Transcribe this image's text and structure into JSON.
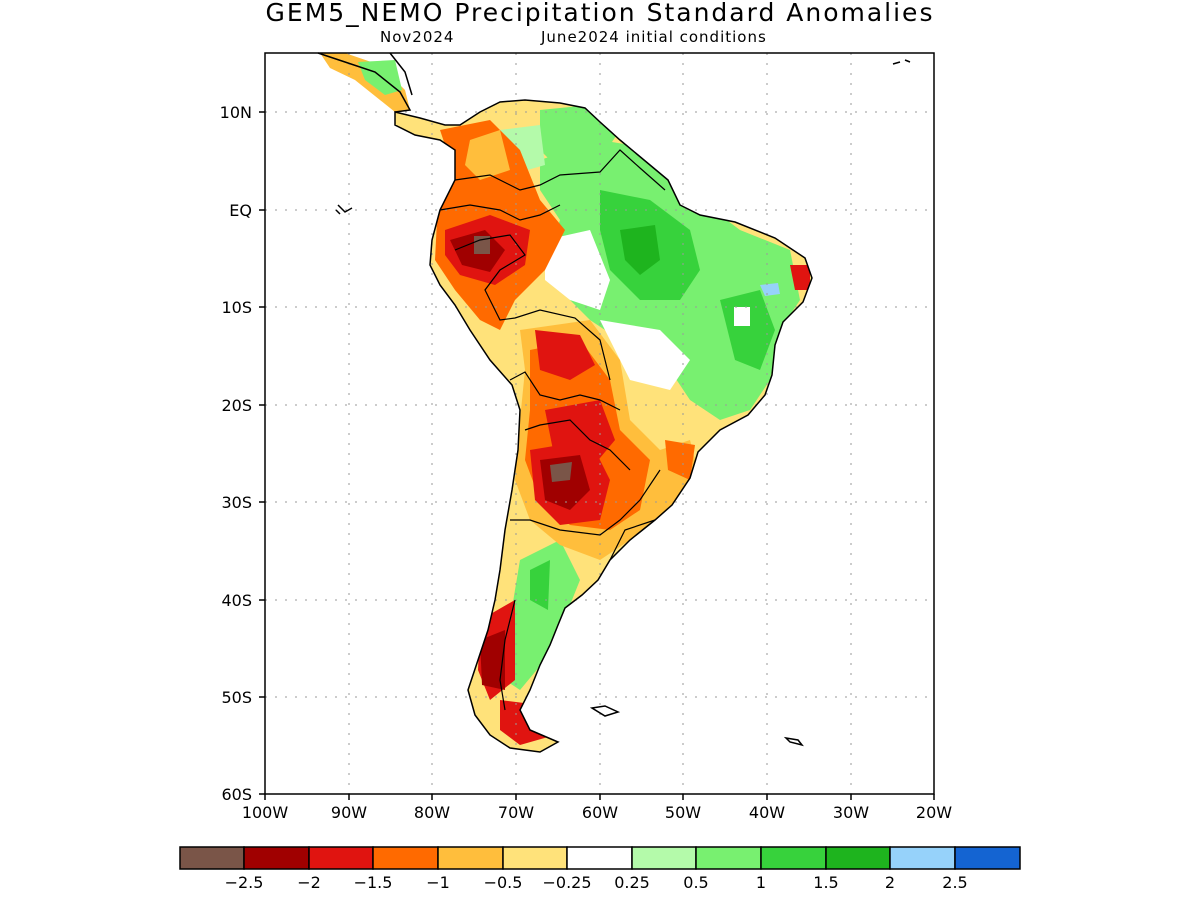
{
  "title": "GEM5_NEMO Precipitation Standard Anomalies",
  "subtitle_left": "Nov2024",
  "subtitle_right": "June2024 initial conditions",
  "map": {
    "lon_labels": [
      "100W",
      "90W",
      "80W",
      "70W",
      "60W",
      "50W",
      "40W",
      "30W",
      "20W"
    ],
    "lat_labels": [
      "10N",
      "EQ",
      "10S",
      "20S",
      "30S",
      "40S",
      "50S",
      "60S"
    ],
    "lon_range": [
      -100,
      -20
    ],
    "lat_range": [
      -60,
      16
    ],
    "gridlines": true
  },
  "colorbar": {
    "labels": [
      "−2.5",
      "−2",
      "−1.5",
      "−1",
      "−0.5",
      "−0.25",
      "0.25",
      "0.5",
      "1",
      "1.5",
      "2",
      "2.5"
    ],
    "colors": [
      "#7a5548",
      "#a00000",
      "#e01410",
      "#ff6a00",
      "#ffbe3c",
      "#ffe27a",
      "#ffffff",
      "#b4faaa",
      "#78f070",
      "#37d23c",
      "#1eb41e",
      "#96d2fa",
      "#1464d2"
    ]
  }
}
